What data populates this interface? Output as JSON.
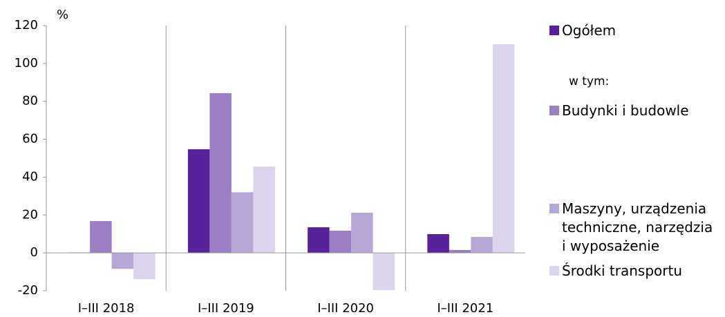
{
  "chart_data": {
    "type": "bar",
    "y_unit": "%",
    "categories": [
      "I–III 2018",
      "I–III 2019",
      "I–III 2020",
      "I–III 2021"
    ],
    "series": [
      {
        "name": "Ogółem",
        "color": "#56219a",
        "values": [
          0.2,
          54.7,
          13.5,
          9.9
        ]
      },
      {
        "name": "Budynki i budowle",
        "color": "#9b7fc5",
        "values": [
          16.8,
          84.3,
          11.7,
          1.5
        ]
      },
      {
        "name": "Maszyny, urządzenia techniczne, narzędzia i wyposażenie",
        "color": "#b9a6d8",
        "values": [
          -8.4,
          32,
          21.2,
          8.4
        ]
      },
      {
        "name": "Środki transportu",
        "color": "#dcd3ec",
        "values": [
          -13.9,
          45.6,
          -19.7,
          110.2
        ]
      }
    ],
    "legend_note": "w tym:",
    "ylim": [
      -20,
      120
    ],
    "yticks": [
      -20,
      0,
      20,
      40,
      60,
      80,
      100,
      120
    ],
    "legend": "right"
  }
}
